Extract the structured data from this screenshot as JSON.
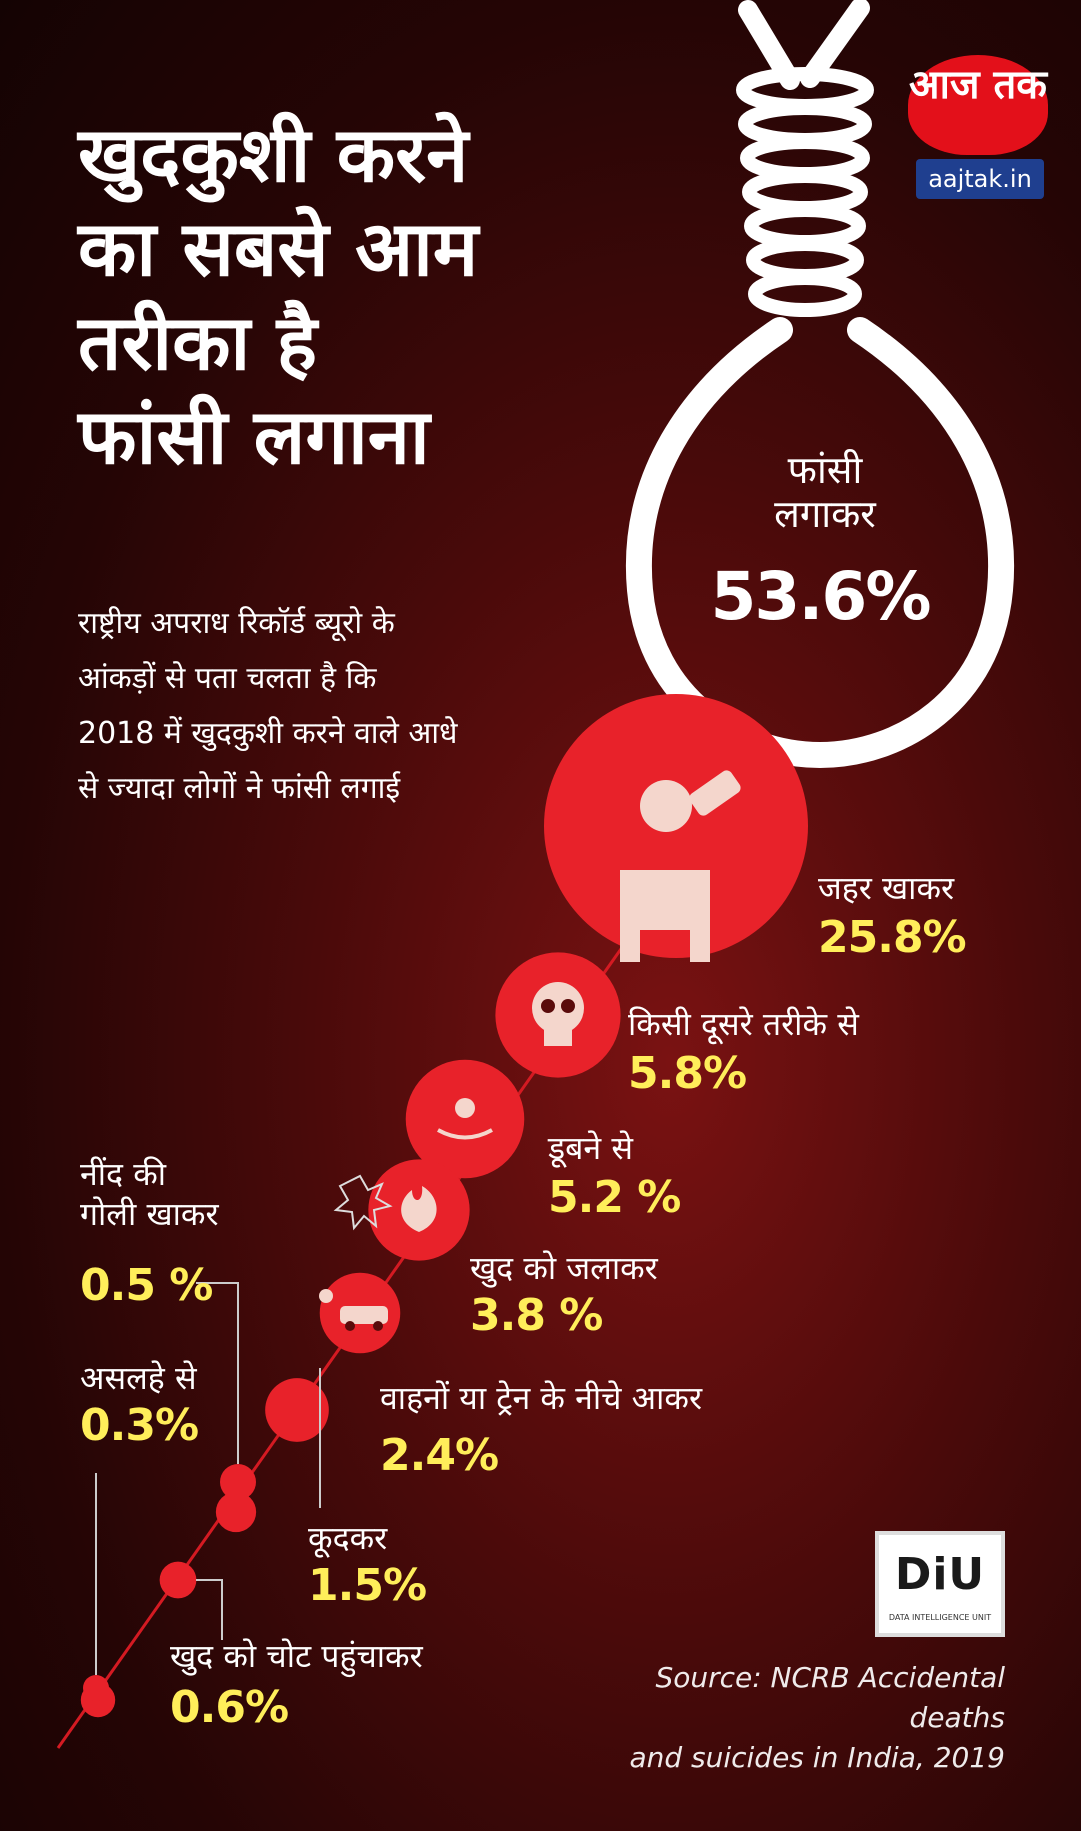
{
  "title_lines": [
    "खुदकुशी करने",
    "का सबसे आम",
    "तरीका है",
    "फांसी लगाना"
  ],
  "intro_lines": [
    "राष्ट्रीय अपराध रिकॉर्ड ब्यूरो के",
    "आंकड़ों से पता चलता है कि",
    "2018 में खुदकुशी करने वाले आधे",
    "से ज्यादा लोगों ने फांसी लगाई"
  ],
  "logo": {
    "brand": "आज तक",
    "site": "aajtak.in"
  },
  "diu": {
    "main": "DiU",
    "sub": "DATA INTELLIGENCE UNIT"
  },
  "source_lines": [
    "Source: NCRB Accidental deaths",
    "and suicides in India, 2019"
  ],
  "colors": {
    "circle": "#e8222a",
    "value_text": "#ffee5a",
    "rope": "#ffffff",
    "line": "#d41a22"
  },
  "chart_data": {
    "type": "pie",
    "categories": [
      "फांसी लगाकर",
      "जहर खाकर",
      "किसी दूसरे तरीके से",
      "डूबने से",
      "खुद को जलाकर",
      "वाहनों या ट्रेन के नीचे आकर",
      "कूदकर",
      "खुद को चोट पहुंचाकर",
      "नींद की गोली खाकर",
      "असलहे से"
    ],
    "values": [
      53.6,
      25.8,
      5.8,
      5.2,
      3.8,
      2.4,
      1.5,
      0.6,
      0.5,
      0.3
    ],
    "value_labels": [
      "53.6%",
      "25.8%",
      "5.8%",
      "5.2 %",
      "3.8 %",
      "2.4%",
      "1.5%",
      "0.6%",
      "0.5 %",
      "0.3%"
    ],
    "category_lines": [
      [
        "फांसी",
        "लगाकर"
      ],
      [
        "जहर खाकर"
      ],
      [
        "किसी दूसरे तरीके से"
      ],
      [
        "डूबने से"
      ],
      [
        "खुद को जलाकर"
      ],
      [
        "वाहनों या ट्रेन के नीचे आकर"
      ],
      [
        "कूदकर"
      ],
      [
        "खुद को चोट पहुंचाकर"
      ],
      [
        "नींद की",
        "गोली खाकर"
      ],
      [
        "असलहे से"
      ]
    ],
    "icons": [
      "noose-icon",
      "drinking-poison-icon",
      "skull-icon",
      "drowning-icon",
      "fire-icon",
      "car-accident-icon",
      "",
      "",
      "",
      ""
    ],
    "title": "खुदकुशी करने का सबसे आम तरीका है फांसी लगाना"
  }
}
